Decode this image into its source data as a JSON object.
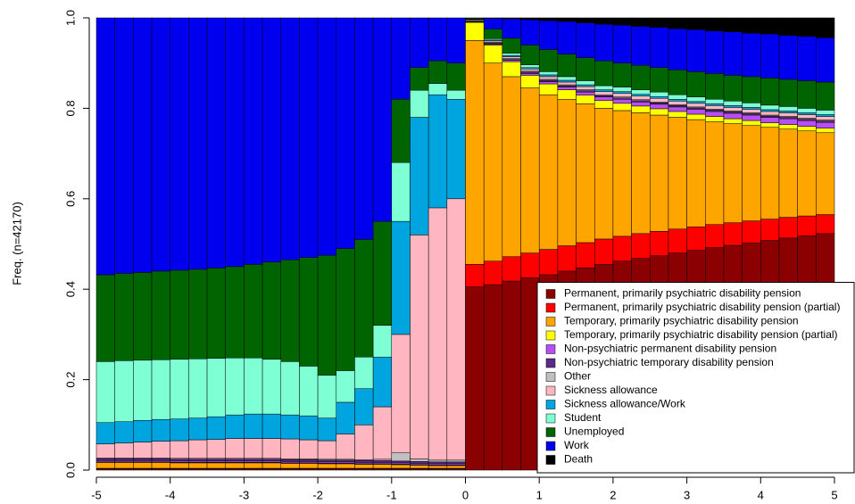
{
  "chart_data": {
    "type": "stacked-bar",
    "y_label": "Freq. (n=42170)",
    "x": [
      -4.875,
      -4.625,
      -4.375,
      -4.125,
      -3.875,
      -3.625,
      -3.375,
      -3.125,
      -2.875,
      -2.625,
      -2.375,
      -2.125,
      -1.875,
      -1.625,
      -1.375,
      -1.125,
      -0.875,
      -0.625,
      -0.375,
      -0.125,
      0.125,
      0.375,
      0.625,
      0.875,
      1.125,
      1.375,
      1.625,
      1.875,
      2.125,
      2.375,
      2.625,
      2.875,
      3.125,
      3.375,
      3.625,
      3.875,
      4.125,
      4.375,
      4.625,
      4.875
    ],
    "xlim": [
      -5,
      5
    ],
    "xticks": [
      -5,
      -4,
      -3,
      -2,
      -1,
      0,
      1,
      2,
      3,
      4,
      5
    ],
    "ylim": [
      0,
      1
    ],
    "yticks": [
      {
        "value": 0,
        "label": "0.0"
      },
      {
        "value": 0.2,
        "label": "0.2"
      },
      {
        "value": 0.4,
        "label": "0.4"
      },
      {
        "value": 0.6,
        "label": "0.6"
      },
      {
        "value": 0.8,
        "label": "0.8"
      },
      {
        "value": 1,
        "label": "1.0"
      }
    ],
    "legend_position": "bottom-right",
    "series": [
      {
        "name": "Permanent, primarily psychiatric disability pension",
        "color": "#8b0000",
        "values": [
          0.003,
          0.003,
          0.003,
          0.003,
          0.003,
          0.003,
          0.003,
          0.003,
          0.003,
          0.003,
          0.003,
          0.003,
          0.003,
          0.003,
          0.003,
          0.003,
          0.003,
          0.003,
          0.003,
          0.003,
          0.405,
          0.41,
          0.418,
          0.425,
          0.432,
          0.44,
          0.447,
          0.455,
          0.462,
          0.468,
          0.474,
          0.48,
          0.486,
          0.492,
          0.497,
          0.502,
          0.508,
          0.513,
          0.518,
          0.523
        ]
      },
      {
        "name": "Permanent, primarily psychiatric disability pension (partial)",
        "color": "#ff0000",
        "values": [
          0.001,
          0.001,
          0.001,
          0.001,
          0.001,
          0.001,
          0.001,
          0.001,
          0.001,
          0.001,
          0.001,
          0.001,
          0.001,
          0.001,
          0.001,
          0.001,
          0.001,
          0.001,
          0.001,
          0.001,
          0.05,
          0.052,
          0.054,
          0.055,
          0.056,
          0.056,
          0.056,
          0.056,
          0.055,
          0.055,
          0.054,
          0.053,
          0.052,
          0.051,
          0.05,
          0.049,
          0.047,
          0.046,
          0.044,
          0.042
        ]
      },
      {
        "name": "Temporary, primarily psychiatric disability pension",
        "color": "#ffa500",
        "values": [
          0.013,
          0.013,
          0.013,
          0.013,
          0.012,
          0.012,
          0.012,
          0.012,
          0.012,
          0.012,
          0.011,
          0.011,
          0.01,
          0.01,
          0.009,
          0.009,
          0.008,
          0.007,
          0.006,
          0.006,
          0.495,
          0.438,
          0.398,
          0.365,
          0.342,
          0.324,
          0.307,
          0.289,
          0.278,
          0.267,
          0.257,
          0.247,
          0.237,
          0.227,
          0.219,
          0.211,
          0.203,
          0.195,
          0.188,
          0.181
        ]
      },
      {
        "name": "Temporary, primarily psychiatric disability pension (partial)",
        "color": "#ffff00",
        "values": [
          0.001,
          0.001,
          0.001,
          0.001,
          0.001,
          0.001,
          0.001,
          0.001,
          0.001,
          0.001,
          0.001,
          0.001,
          0.001,
          0.001,
          0.001,
          0.001,
          0.001,
          0.001,
          0.001,
          0.001,
          0.04,
          0.04,
          0.033,
          0.028,
          0.024,
          0.021,
          0.019,
          0.017,
          0.016,
          0.015,
          0.014,
          0.013,
          0.012,
          0.012,
          0.011,
          0.011,
          0.01,
          0.01,
          0.01,
          0.01
        ]
      },
      {
        "name": "Non-psychiatric permanent disability pension",
        "color": "#b84ff5",
        "values": [
          0.003,
          0.003,
          0.003,
          0.003,
          0.003,
          0.003,
          0.003,
          0.003,
          0.003,
          0.003,
          0.003,
          0.003,
          0.003,
          0.003,
          0.003,
          0.003,
          0.003,
          0.003,
          0.003,
          0.003,
          0.001,
          0.002,
          0.003,
          0.004,
          0.005,
          0.006,
          0.007,
          0.008,
          0.009,
          0.009,
          0.01,
          0.01,
          0.011,
          0.011,
          0.012,
          0.012,
          0.012,
          0.013,
          0.013,
          0.013
        ]
      },
      {
        "name": "Non-psychiatric temporary disability pension",
        "color": "#5c2a86",
        "values": [
          0.004,
          0.004,
          0.004,
          0.004,
          0.004,
          0.004,
          0.004,
          0.004,
          0.004,
          0.004,
          0.004,
          0.004,
          0.004,
          0.004,
          0.004,
          0.004,
          0.004,
          0.004,
          0.004,
          0.004,
          0.001,
          0.002,
          0.002,
          0.003,
          0.003,
          0.003,
          0.003,
          0.003,
          0.003,
          0.003,
          0.003,
          0.003,
          0.003,
          0.003,
          0.003,
          0.003,
          0.003,
          0.003,
          0.003,
          0.003
        ]
      },
      {
        "name": "Other",
        "color": "#c0c0c0",
        "values": [
          0.002,
          0.002,
          0.002,
          0.002,
          0.002,
          0.002,
          0.002,
          0.002,
          0.002,
          0.002,
          0.002,
          0.002,
          0.002,
          0.002,
          0.002,
          0.003,
          0.018,
          0.006,
          0.004,
          0.004,
          0.002,
          0.002,
          0.002,
          0.002,
          0.002,
          0.002,
          0.002,
          0.002,
          0.002,
          0.002,
          0.002,
          0.002,
          0.002,
          0.002,
          0.002,
          0.002,
          0.002,
          0.002,
          0.002,
          0.002
        ]
      },
      {
        "name": "Sickness allowance",
        "color": "#ffb6c1",
        "values": [
          0.031,
          0.033,
          0.035,
          0.037,
          0.039,
          0.041,
          0.042,
          0.044,
          0.044,
          0.044,
          0.044,
          0.042,
          0.041,
          0.056,
          0.077,
          0.116,
          0.262,
          0.495,
          0.558,
          0.578,
          0.002,
          0.003,
          0.004,
          0.005,
          0.006,
          0.006,
          0.007,
          0.007,
          0.008,
          0.008,
          0.008,
          0.008,
          0.008,
          0.008,
          0.008,
          0.008,
          0.008,
          0.008,
          0.008,
          0.008
        ]
      },
      {
        "name": "Sickness allowance/Work",
        "color": "#00a5e0",
        "values": [
          0.047,
          0.047,
          0.048,
          0.048,
          0.048,
          0.048,
          0.05,
          0.052,
          0.054,
          0.054,
          0.053,
          0.053,
          0.05,
          0.07,
          0.08,
          0.11,
          0.25,
          0.26,
          0.25,
          0.22,
          0.001,
          0.002,
          0.003,
          0.003,
          0.004,
          0.004,
          0.004,
          0.004,
          0.004,
          0.004,
          0.004,
          0.004,
          0.004,
          0.004,
          0.004,
          0.004,
          0.004,
          0.004,
          0.004,
          0.004
        ]
      },
      {
        "name": "Student",
        "color": "#7fffd4",
        "values": [
          0.135,
          0.135,
          0.133,
          0.132,
          0.132,
          0.131,
          0.129,
          0.126,
          0.124,
          0.121,
          0.118,
          0.11,
          0.095,
          0.07,
          0.07,
          0.07,
          0.13,
          0.06,
          0.025,
          0.02,
          0.001,
          0.003,
          0.005,
          0.006,
          0.007,
          0.008,
          0.009,
          0.009,
          0.01,
          0.01,
          0.01,
          0.01,
          0.01,
          0.01,
          0.01,
          0.01,
          0.01,
          0.01,
          0.01,
          0.01
        ]
      },
      {
        "name": "Unemployed",
        "color": "#006400",
        "values": [
          0.192,
          0.193,
          0.194,
          0.196,
          0.197,
          0.198,
          0.2,
          0.202,
          0.207,
          0.215,
          0.225,
          0.24,
          0.265,
          0.27,
          0.26,
          0.23,
          0.14,
          0.05,
          0.05,
          0.06,
          0.002,
          0.021,
          0.033,
          0.044,
          0.049,
          0.05,
          0.051,
          0.055,
          0.053,
          0.054,
          0.054,
          0.055,
          0.056,
          0.057,
          0.057,
          0.058,
          0.06,
          0.06,
          0.061,
          0.062
        ]
      },
      {
        "name": "Work",
        "color": "#0000ee",
        "values": [
          0.568,
          0.565,
          0.563,
          0.56,
          0.558,
          0.556,
          0.553,
          0.55,
          0.545,
          0.54,
          0.535,
          0.53,
          0.525,
          0.51,
          0.49,
          0.45,
          0.18,
          0.11,
          0.095,
          0.1,
          0,
          0.024,
          0.043,
          0.056,
          0.064,
          0.072,
          0.077,
          0.081,
          0.084,
          0.086,
          0.089,
          0.091,
          0.093,
          0.094,
          0.096,
          0.096,
          0.097,
          0.097,
          0.098,
          0.098
        ]
      },
      {
        "name": "Death",
        "color": "#000000",
        "values": [
          0,
          0,
          0,
          0,
          0,
          0,
          0,
          0,
          0,
          0,
          0,
          0,
          0,
          0,
          0,
          0,
          0,
          0,
          0,
          0,
          0,
          0.001,
          0.002,
          0.004,
          0.006,
          0.008,
          0.011,
          0.014,
          0.016,
          0.019,
          0.021,
          0.024,
          0.026,
          0.029,
          0.031,
          0.034,
          0.036,
          0.039,
          0.041,
          0.044
        ]
      }
    ]
  }
}
